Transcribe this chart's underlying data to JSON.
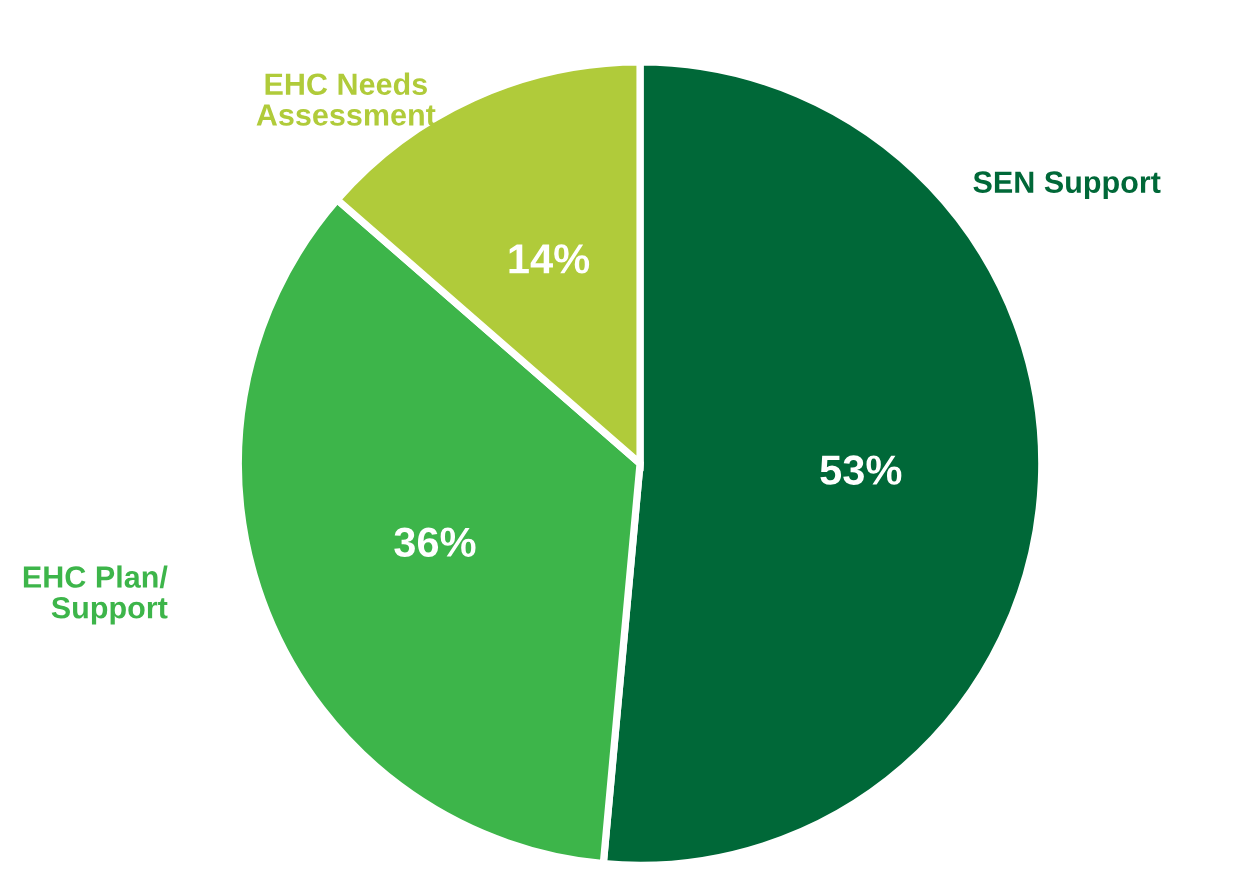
{
  "chart_data": {
    "type": "pie",
    "categories": [
      "SEN Support",
      "EHC Plan/\nSupport",
      "EHC Needs\nAssessment"
    ],
    "values": [
      53,
      36,
      14
    ],
    "value_labels": [
      "53%",
      "36%",
      "14%"
    ],
    "colors": [
      "#006838",
      "#3db54a",
      "#b0cb3a"
    ],
    "legend": false
  }
}
